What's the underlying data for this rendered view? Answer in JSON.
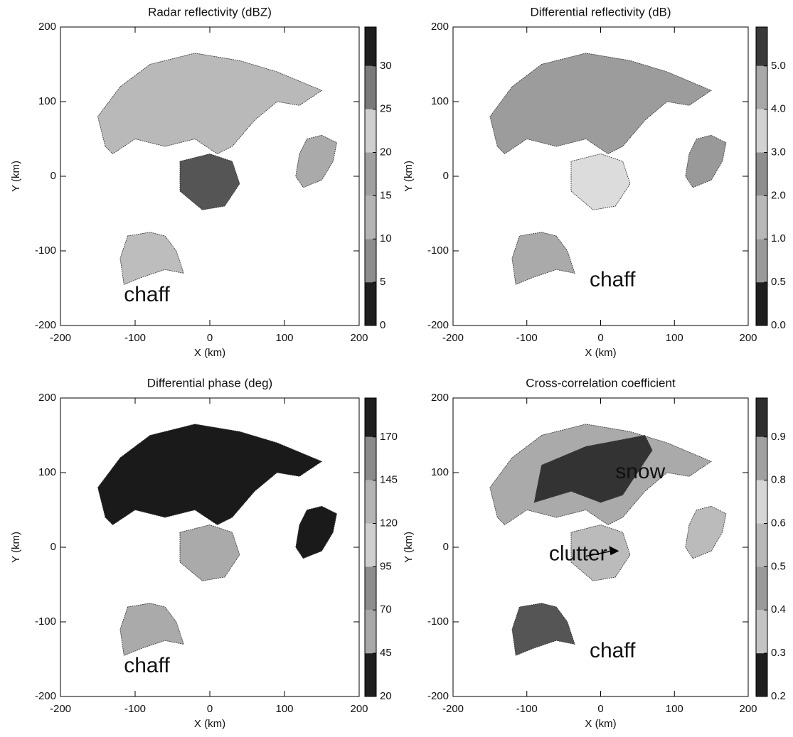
{
  "chart_data": [
    {
      "type": "heatmap",
      "title": "Radar reflectivity (dBZ)",
      "xlabel": "X (km)",
      "ylabel": "Y (km)",
      "xlim": [
        -200,
        200
      ],
      "ylim": [
        -200,
        200
      ],
      "xticks": [
        -200,
        -100,
        0,
        100,
        200
      ],
      "yticks": [
        -200,
        -100,
        0,
        100,
        200
      ],
      "colorbar": {
        "ticks": [
          0,
          5,
          10,
          15,
          20,
          25,
          30
        ],
        "colors": [
          "#1e1e1e",
          "#8c8c8c",
          "#b4b4b4",
          "#a0a0a0",
          "#cfcfcf",
          "#7a7a7a",
          "#1e1e1e"
        ]
      },
      "annotations": [
        "chaff"
      ]
    },
    {
      "type": "heatmap",
      "title": "Differential reflectivity (dB)",
      "xlabel": "X (km)",
      "ylabel": "Y (km)",
      "xlim": [
        -200,
        200
      ],
      "ylim": [
        -200,
        200
      ],
      "xticks": [
        -200,
        -100,
        0,
        100,
        200
      ],
      "yticks": [
        -200,
        -100,
        0,
        100,
        200
      ],
      "colorbar": {
        "ticks": [
          {
            "value": 0,
            "label": "0.0"
          },
          {
            "value": 0.5,
            "label": "0.5"
          },
          {
            "value": 1,
            "label": "1.0"
          },
          {
            "value": 2,
            "label": "2.0"
          },
          {
            "value": 3,
            "label": "3.0"
          },
          {
            "value": 4,
            "label": "4.0"
          },
          {
            "value": 5,
            "label": "5.0"
          }
        ],
        "colors": [
          "#1e1e1e",
          "#9a9a9a",
          "#b8b8b8",
          "#8e8e8e",
          "#d2d2d2",
          "#a8a8a8",
          "#3a3a3a"
        ]
      },
      "annotations": [
        "chaff"
      ]
    },
    {
      "type": "heatmap",
      "title": "Differential phase (deg)",
      "xlabel": "X (km)",
      "ylabel": "Y (km)",
      "xlim": [
        -200,
        200
      ],
      "ylim": [
        -200,
        200
      ],
      "xticks": [
        -200,
        -100,
        0,
        100,
        200
      ],
      "yticks": [
        -200,
        -100,
        0,
        100,
        200
      ],
      "colorbar": {
        "ticks": [
          20,
          45,
          70,
          95,
          120,
          145,
          170
        ],
        "colors": [
          "#1e1e1e",
          "#a8a8a8",
          "#8c8c8c",
          "#cfcfcf",
          "#b4b4b4",
          "#8a8a8a",
          "#1e1e1e"
        ]
      },
      "annotations": [
        "chaff"
      ]
    },
    {
      "type": "heatmap",
      "title": "Cross-correlation coefficient",
      "xlabel": "X (km)",
      "ylabel": "Y (km)",
      "xlim": [
        -200,
        200
      ],
      "ylim": [
        -200,
        200
      ],
      "xticks": [
        -200,
        -100,
        0,
        100,
        200
      ],
      "yticks": [
        -200,
        -100,
        0,
        100,
        200
      ],
      "colorbar": {
        "ticks": [
          0.2,
          0.3,
          0.4,
          0.5,
          0.6,
          0.8,
          0.9
        ],
        "colors": [
          "#1e1e1e",
          "#c4c4c4",
          "#9a9a9a",
          "#b8b8b8",
          "#d6d6d6",
          "#a0a0a0",
          "#2e2e2e"
        ]
      },
      "annotations": [
        "snow",
        "clutter",
        "chaff"
      ]
    }
  ]
}
